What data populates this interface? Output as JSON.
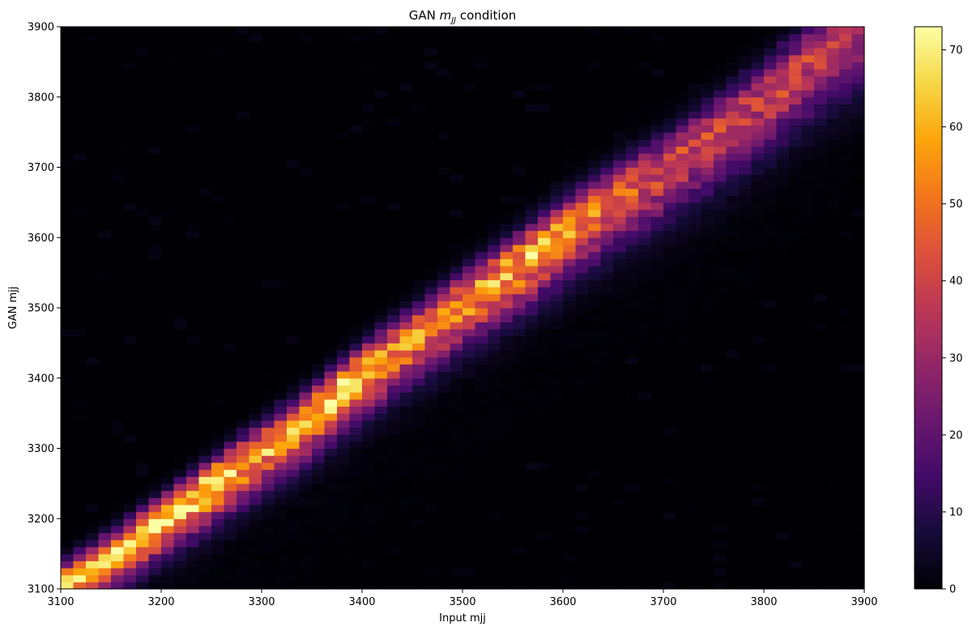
{
  "chart_data": {
    "type": "heatmap",
    "title_prefix": "GAN ",
    "title_math_base": "m",
    "title_math_sub": "JJ",
    "title_suffix": " condition",
    "xlabel": "Input mjj",
    "ylabel": "GAN mjj",
    "xlim": [
      3100,
      3900
    ],
    "ylim": [
      3100,
      3900
    ],
    "xticks": [
      "3100",
      "3200",
      "3300",
      "3400",
      "3500",
      "3600",
      "3700",
      "3800",
      "3900"
    ],
    "yticks": [
      "3100",
      "3200",
      "3300",
      "3400",
      "3500",
      "3600",
      "3700",
      "3800",
      "3900"
    ],
    "bins_x": 64,
    "bins_y": 80,
    "colormap": "inferno",
    "colorbar_range": [
      0,
      73
    ],
    "colorbar_ticks": [
      "0",
      "10",
      "20",
      "30",
      "40",
      "50",
      "60",
      "70"
    ],
    "ridge": {
      "points": [
        {
          "x": 3100,
          "y": 3105,
          "peak": 65
        },
        {
          "x": 3150,
          "y": 3150,
          "peak": 62
        },
        {
          "x": 3200,
          "y": 3200,
          "peak": 66
        },
        {
          "x": 3250,
          "y": 3250,
          "peak": 70
        },
        {
          "x": 3300,
          "y": 3300,
          "peak": 58
        },
        {
          "x": 3350,
          "y": 3350,
          "peak": 60
        },
        {
          "x": 3400,
          "y": 3410,
          "peak": 62
        },
        {
          "x": 3450,
          "y": 3460,
          "peak": 53
        },
        {
          "x": 3500,
          "y": 3510,
          "peak": 55
        },
        {
          "x": 3550,
          "y": 3560,
          "peak": 57
        },
        {
          "x": 3600,
          "y": 3610,
          "peak": 58
        },
        {
          "x": 3650,
          "y": 3660,
          "peak": 45
        },
        {
          "x": 3700,
          "y": 3700,
          "peak": 40
        },
        {
          "x": 3750,
          "y": 3750,
          "peak": 40
        },
        {
          "x": 3800,
          "y": 3800,
          "peak": 38
        },
        {
          "x": 3850,
          "y": 3860,
          "peak": 38
        },
        {
          "x": 3900,
          "y": 3900,
          "peak": 30
        }
      ],
      "width_gan_units": [
        18,
        32
      ],
      "tail": "spreads to lower GAN mjj (below the ridge)"
    }
  }
}
